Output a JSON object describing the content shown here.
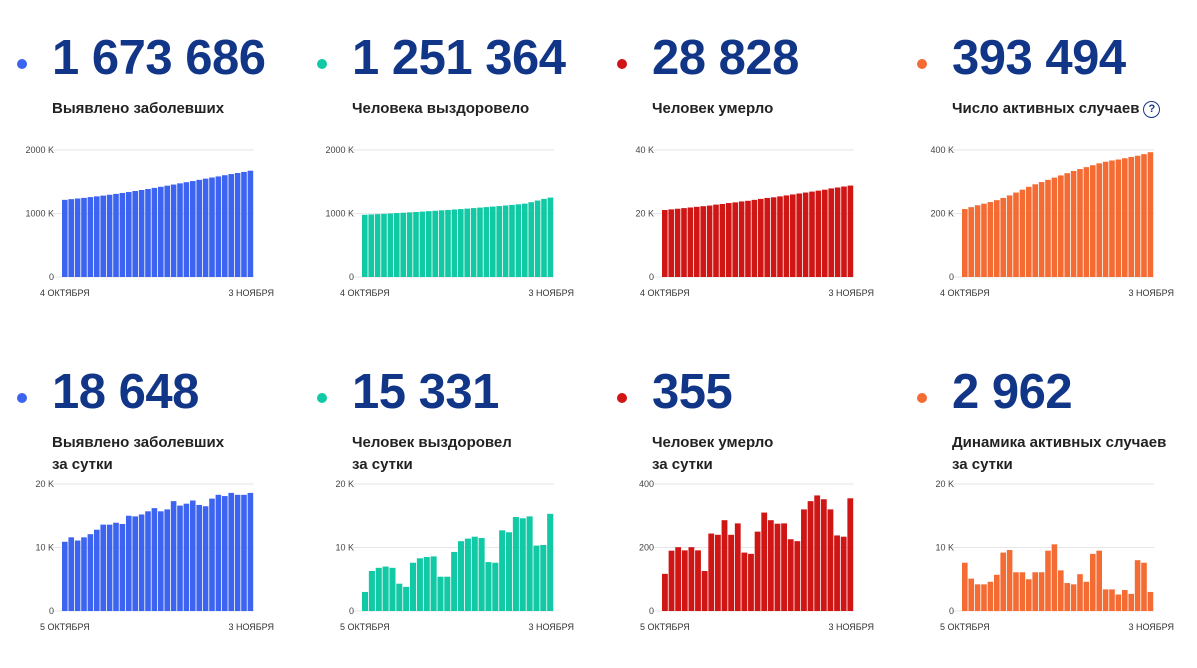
{
  "cards": [
    {
      "value": "1 673 686",
      "label_lines": [
        "Выявлено заболевших"
      ],
      "help": false,
      "color": "#3c64f0",
      "chart_data": {
        "type": "bar",
        "ticks": [
          "0",
          "1000 K",
          "2000 K"
        ],
        "ylim": [
          0,
          2000
        ],
        "x_start": "4 ОКТЯБРЯ",
        "x_end": "3 НОЯБРЯ",
        "values": [
          1215,
          1226,
          1236,
          1246,
          1258,
          1270,
          1282,
          1295,
          1309,
          1323,
          1338,
          1354,
          1370,
          1386,
          1403,
          1421,
          1438,
          1456,
          1475,
          1493,
          1511,
          1530,
          1549,
          1567,
          1584,
          1603,
          1621,
          1638,
          1655,
          1674
        ]
      }
    },
    {
      "value": "1 251 364",
      "label_lines": [
        "Человека выздоровело"
      ],
      "help": false,
      "color": "#11c9a4",
      "chart_data": {
        "type": "bar",
        "ticks": [
          "0",
          "1000 K",
          "2000 K"
        ],
        "ylim": [
          0,
          2000
        ],
        "x_start": "4 ОКТЯБРЯ",
        "x_end": "3 НОЯБРЯ",
        "values": [
          980,
          985,
          990,
          995,
          1001,
          1007,
          1012,
          1018,
          1024,
          1030,
          1037,
          1043,
          1050,
          1056,
          1063,
          1070,
          1077,
          1085,
          1093,
          1101,
          1109,
          1117,
          1126,
          1135,
          1145,
          1155,
          1178,
          1204,
          1230,
          1251
        ]
      }
    },
    {
      "value": "28 828",
      "label_lines": [
        "Человек умерло"
      ],
      "help": false,
      "color": "#d01515",
      "chart_data": {
        "type": "bar",
        "ticks": [
          "0",
          "20 K",
          "40 K"
        ],
        "ylim": [
          0,
          40
        ],
        "x_start": "4 ОКТЯБРЯ",
        "x_end": "3 НОЯБРЯ",
        "values": [
          21.1,
          21.3,
          21.5,
          21.7,
          21.9,
          22.1,
          22.3,
          22.5,
          22.8,
          23.0,
          23.3,
          23.5,
          23.8,
          24.0,
          24.3,
          24.6,
          24.9,
          25.1,
          25.4,
          25.7,
          26.0,
          26.3,
          26.6,
          26.9,
          27.2,
          27.5,
          27.9,
          28.2,
          28.5,
          28.8
        ]
      }
    },
    {
      "value": "393 494",
      "label_lines": [
        "Число активных случаев"
      ],
      "help": true,
      "help_glyph": "?",
      "color": "#f46b33",
      "chart_data": {
        "type": "bar",
        "ticks": [
          "0",
          "200 K",
          "400 K"
        ],
        "ylim": [
          0,
          400
        ],
        "x_start": "4 ОКТЯБРЯ",
        "x_end": "3 НОЯБРЯ",
        "values": [
          214,
          220,
          226,
          231,
          236,
          242,
          249,
          257,
          266,
          275,
          284,
          292,
          299,
          306,
          313,
          320,
          327,
          334,
          340,
          346,
          352,
          358,
          363,
          367,
          370,
          374,
          378,
          382,
          387,
          393
        ]
      }
    },
    {
      "value": "18 648",
      "label_lines": [
        "Выявлено заболевших",
        "за сутки"
      ],
      "help": false,
      "color": "#3c64f0",
      "chart_data": {
        "type": "bar",
        "ticks": [
          "0",
          "10 K",
          "20 K"
        ],
        "ylim": [
          0,
          20
        ],
        "x_start": "5 ОКТЯБРЯ",
        "x_end": "3 НОЯБРЯ",
        "values": [
          10.9,
          11.6,
          11.1,
          11.6,
          12.1,
          12.8,
          13.6,
          13.6,
          13.9,
          13.7,
          15.0,
          14.9,
          15.2,
          15.7,
          16.2,
          15.7,
          16.0,
          17.3,
          16.6,
          16.9,
          17.4,
          16.7,
          16.5,
          17.7,
          18.3,
          18.1,
          18.6,
          18.3,
          18.3,
          18.6
        ]
      }
    },
    {
      "value": "15 331",
      "label_lines": [
        "Человек выздоровел",
        "за сутки"
      ],
      "help": false,
      "color": "#11c9a4",
      "chart_data": {
        "type": "bar",
        "ticks": [
          "0",
          "10 K",
          "20 K"
        ],
        "ylim": [
          0,
          20
        ],
        "x_start": "5 ОКТЯБРЯ",
        "x_end": "3 НОЯБРЯ",
        "values": [
          3.0,
          6.3,
          6.8,
          7.0,
          6.8,
          4.3,
          3.8,
          7.6,
          8.3,
          8.5,
          8.6,
          5.4,
          5.4,
          9.3,
          11.0,
          11.4,
          11.7,
          11.5,
          7.7,
          7.6,
          12.7,
          12.4,
          14.8,
          14.6,
          14.9,
          10.3,
          10.4,
          15.3
        ]
      }
    },
    {
      "value": "355",
      "label_lines": [
        "Человек умерло",
        "за сутки"
      ],
      "help": false,
      "color": "#d01515",
      "chart_data": {
        "type": "bar",
        "ticks": [
          "0",
          "200",
          "400"
        ],
        "ylim": [
          0,
          400
        ],
        "x_start": "5 ОКТЯБРЯ",
        "x_end": "3 НОЯБРЯ",
        "values": [
          117,
          190,
          201,
          191,
          201,
          191,
          126,
          244,
          240,
          286,
          240,
          276,
          184,
          180,
          250,
          310,
          286,
          275,
          276,
          226,
          220,
          320,
          346,
          364,
          352,
          320,
          238,
          234,
          355
        ]
      }
    },
    {
      "value": "2 962",
      "label_lines": [
        "Динамика активных случаев",
        "за сутки"
      ],
      "help": false,
      "color": "#f46b33",
      "chart_data": {
        "type": "bar",
        "ticks": [
          "0",
          "10 K",
          "20 K"
        ],
        "ylim": [
          0,
          20
        ],
        "x_start": "5 ОКТЯБРЯ",
        "x_end": "3 НОЯБРЯ",
        "values": [
          7.6,
          5.1,
          4.2,
          4.2,
          4.6,
          5.7,
          9.2,
          9.6,
          6.1,
          6.1,
          5.0,
          6.1,
          6.1,
          9.5,
          10.5,
          6.4,
          4.4,
          4.2,
          5.8,
          4.6,
          9.0,
          9.5,
          3.4,
          3.4,
          2.6,
          3.3,
          2.7,
          8.0,
          7.6,
          3.0
        ]
      }
    }
  ]
}
